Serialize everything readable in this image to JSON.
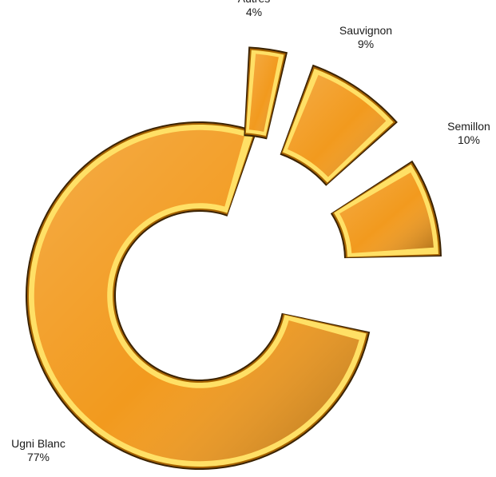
{
  "chart_data": {
    "type": "pie",
    "style": "exploded-donut",
    "categories": [
      "Ugni Blanc",
      "Semillon",
      "Sauvignon",
      "Autres"
    ],
    "values": [
      77,
      10,
      9,
      4
    ],
    "value_labels": [
      "77%",
      "10%",
      "9%",
      "4%"
    ],
    "title": "",
    "legend": "none",
    "colors": {
      "face": "#F29A1E",
      "highlight": "#FFE066",
      "mid": "#F5A623",
      "shadow": "#3A2200",
      "dark": "#A86400"
    }
  }
}
